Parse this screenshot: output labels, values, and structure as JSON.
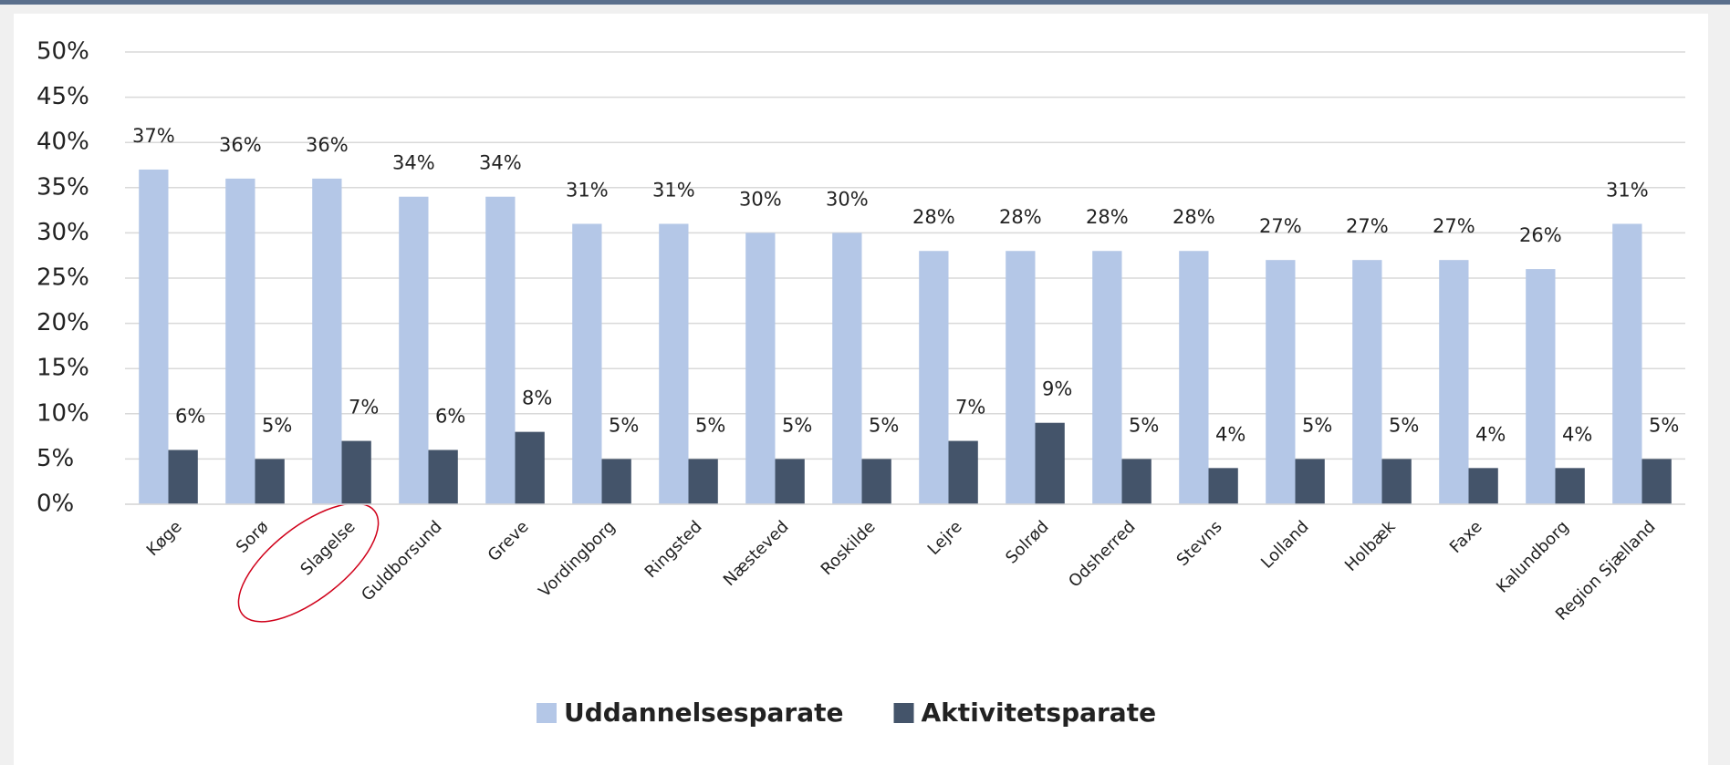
{
  "chart_data": {
    "type": "bar",
    "categories": [
      "Køge",
      "Sorø",
      "Slagelse",
      "Guldborsund",
      "Greve",
      "Vordingborg",
      "Ringsted",
      "Næsteved",
      "Roskilde",
      "Lejre",
      "Solrød",
      "Odsherred",
      "Stevns",
      "Lolland",
      "Holbæk",
      "Faxe",
      "Kalundborg",
      "Region Sjælland"
    ],
    "series": [
      {
        "name": "Uddannelsesparate",
        "color": "#b4c7e7",
        "values": [
          37,
          36,
          36,
          34,
          34,
          31,
          31,
          30,
          30,
          28,
          28,
          28,
          28,
          27,
          27,
          27,
          26,
          31
        ],
        "value_labels": [
          "37%",
          "36%",
          "36%",
          "34%",
          "34%",
          "31%",
          "31%",
          "30%",
          "30%",
          "28%",
          "28%",
          "28%",
          "28%",
          "27%",
          "27%",
          "27%",
          "26%",
          "31%"
        ]
      },
      {
        "name": "Aktivitetsparate",
        "color": "#44546a",
        "values": [
          6,
          5,
          7,
          6,
          8,
          5,
          5,
          5,
          5,
          7,
          9,
          5,
          4,
          5,
          5,
          4,
          4,
          5
        ],
        "value_labels": [
          "6%",
          "5%",
          "7%",
          "6%",
          "8%",
          "5%",
          "5%",
          "5%",
          "5%",
          "7%",
          "9%",
          "5%",
          "4%",
          "5%",
          "5%",
          "4%",
          "4%",
          "5%"
        ]
      }
    ],
    "ylim": [
      0,
      50
    ],
    "yticks": [
      {
        "value": 0,
        "label": "0%"
      },
      {
        "value": 5,
        "label": "5%"
      },
      {
        "value": 10,
        "label": "10%"
      },
      {
        "value": 15,
        "label": "15%"
      },
      {
        "value": 20,
        "label": "20%"
      },
      {
        "value": 25,
        "label": "25%"
      },
      {
        "value": 30,
        "label": "30%"
      },
      {
        "value": 35,
        "label": "35%"
      },
      {
        "value": 40,
        "label": "40%"
      },
      {
        "value": 45,
        "label": "45%"
      },
      {
        "value": 50,
        "label": "50%"
      }
    ],
    "grid": true
  }
}
